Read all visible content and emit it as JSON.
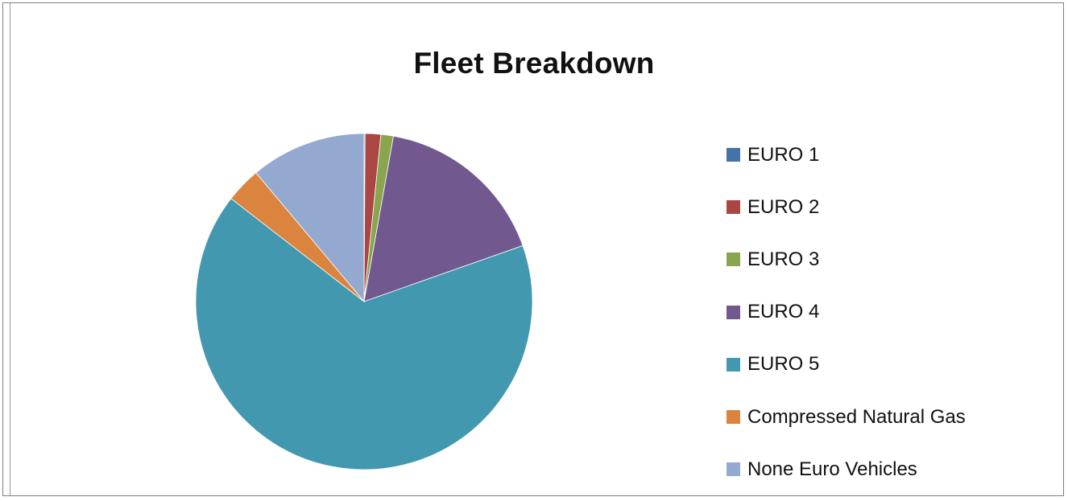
{
  "chart_data": {
    "type": "pie",
    "title": "Fleet Breakdown",
    "legend_position": "right",
    "categories": [
      "EURO 1",
      "EURO 2",
      "EURO 3",
      "EURO 4",
      "EURO 5",
      "Compressed Natural Gas",
      "None Euro Vehicles"
    ],
    "values": [
      0.1,
      1.5,
      1.2,
      16.8,
      65.9,
      3.4,
      11.1
    ],
    "colors": [
      "#4572a7",
      "#aa4643",
      "#89a54e",
      "#71588f",
      "#4198af",
      "#db843d",
      "#93a9cf"
    ]
  }
}
